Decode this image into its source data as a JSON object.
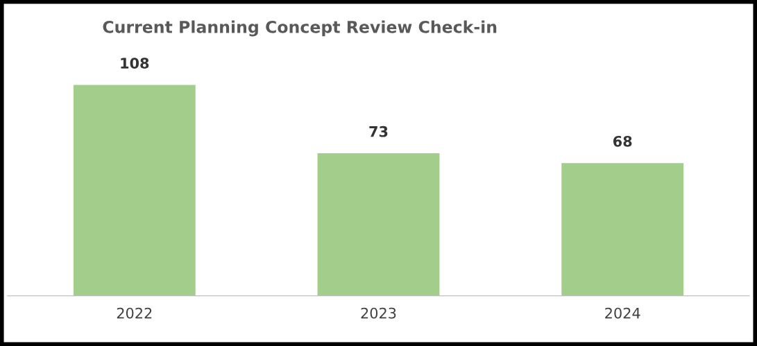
{
  "chart_data": {
    "type": "bar",
    "title": "Current Planning Concept Review Check-in",
    "categories": [
      "2022",
      "2023",
      "2024"
    ],
    "values": [
      108,
      73,
      68
    ],
    "color": "#a3cd8a",
    "data_labels": true,
    "grid": false,
    "legend": false
  }
}
